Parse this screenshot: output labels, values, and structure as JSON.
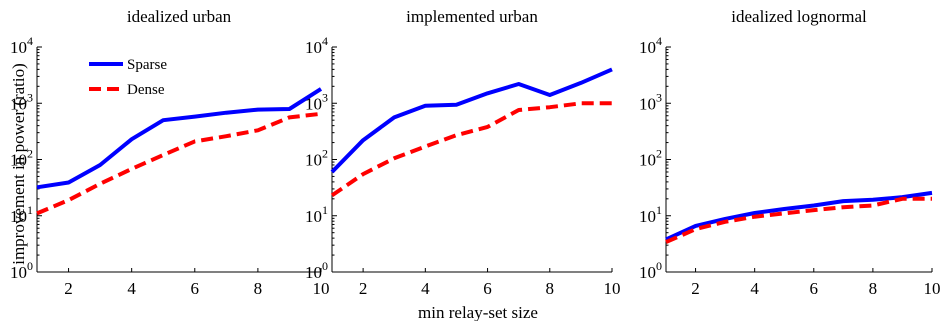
{
  "figure": {
    "ylabel": "improvement in power (ratio)",
    "xlabel": "min relay-set size"
  },
  "legend": {
    "placement": "top-left of first panel",
    "entries": [
      {
        "name": "Sparse",
        "color": "#0000ff",
        "style": "solid"
      },
      {
        "name": "Dense",
        "color": "#ff0000",
        "style": "dashed"
      }
    ]
  },
  "chart_data": [
    {
      "type": "line",
      "title": "idealized urban",
      "x": [
        1,
        2,
        3,
        4,
        5,
        6,
        7,
        8,
        9,
        10
      ],
      "xlim": [
        1,
        10
      ],
      "ylim": [
        1,
        10000
      ],
      "yscale": "log",
      "xticks": [
        2,
        4,
        6,
        8,
        10
      ],
      "yticks": [
        {
          "base": "10",
          "exp": "0"
        },
        {
          "base": "10",
          "exp": "1"
        },
        {
          "base": "10",
          "exp": "2"
        },
        {
          "base": "10",
          "exp": "3"
        },
        {
          "base": "10",
          "exp": "4"
        }
      ],
      "grid": false,
      "series": [
        {
          "name": "Sparse",
          "color": "#0000ff",
          "values": [
            32,
            39,
            80,
            230,
            500,
            580,
            680,
            770,
            790,
            1800
          ]
        },
        {
          "name": "Dense",
          "color": "#ff0000",
          "values": [
            11,
            19,
            37,
            68,
            120,
            210,
            260,
            330,
            560,
            650
          ]
        }
      ]
    },
    {
      "type": "line",
      "title": "implemented urban",
      "x": [
        1,
        2,
        3,
        4,
        5,
        6,
        7,
        8,
        9,
        10
      ],
      "xlim": [
        1,
        10
      ],
      "ylim": [
        1,
        10000
      ],
      "yscale": "log",
      "xticks": [
        2,
        4,
        6,
        8,
        10
      ],
      "yticks": [
        {
          "base": "10",
          "exp": "0"
        },
        {
          "base": "10",
          "exp": "1"
        },
        {
          "base": "10",
          "exp": "2"
        },
        {
          "base": "10",
          "exp": "3"
        },
        {
          "base": "10",
          "exp": "4"
        }
      ],
      "grid": false,
      "series": [
        {
          "name": "Sparse",
          "color": "#0000ff",
          "values": [
            60,
            220,
            560,
            900,
            940,
            1500,
            2200,
            1400,
            2300,
            4000
          ]
        },
        {
          "name": "Dense",
          "color": "#ff0000",
          "values": [
            23,
            55,
            105,
            170,
            270,
            380,
            760,
            850,
            1000,
            1000
          ]
        }
      ]
    },
    {
      "type": "line",
      "title": "idealized lognormal",
      "x": [
        1,
        2,
        3,
        4,
        5,
        6,
        7,
        8,
        9,
        10
      ],
      "xlim": [
        1,
        10
      ],
      "ylim": [
        1,
        10000
      ],
      "yscale": "log",
      "xticks": [
        2,
        4,
        6,
        8,
        10
      ],
      "yticks": [
        {
          "base": "10",
          "exp": "0"
        },
        {
          "base": "10",
          "exp": "1"
        },
        {
          "base": "10",
          "exp": "2"
        },
        {
          "base": "10",
          "exp": "3"
        },
        {
          "base": "10",
          "exp": "4"
        }
      ],
      "grid": false,
      "series": [
        {
          "name": "Sparse",
          "color": "#0000ff",
          "values": [
            3.8,
            6.6,
            8.8,
            11.2,
            13.2,
            15.2,
            18.2,
            19.2,
            21.5,
            25.5
          ]
        },
        {
          "name": "Dense",
          "color": "#ff0000",
          "values": [
            3.4,
            5.8,
            7.8,
            9.6,
            11.0,
            12.6,
            14.2,
            15.2,
            20.0,
            20.0
          ]
        }
      ]
    }
  ]
}
